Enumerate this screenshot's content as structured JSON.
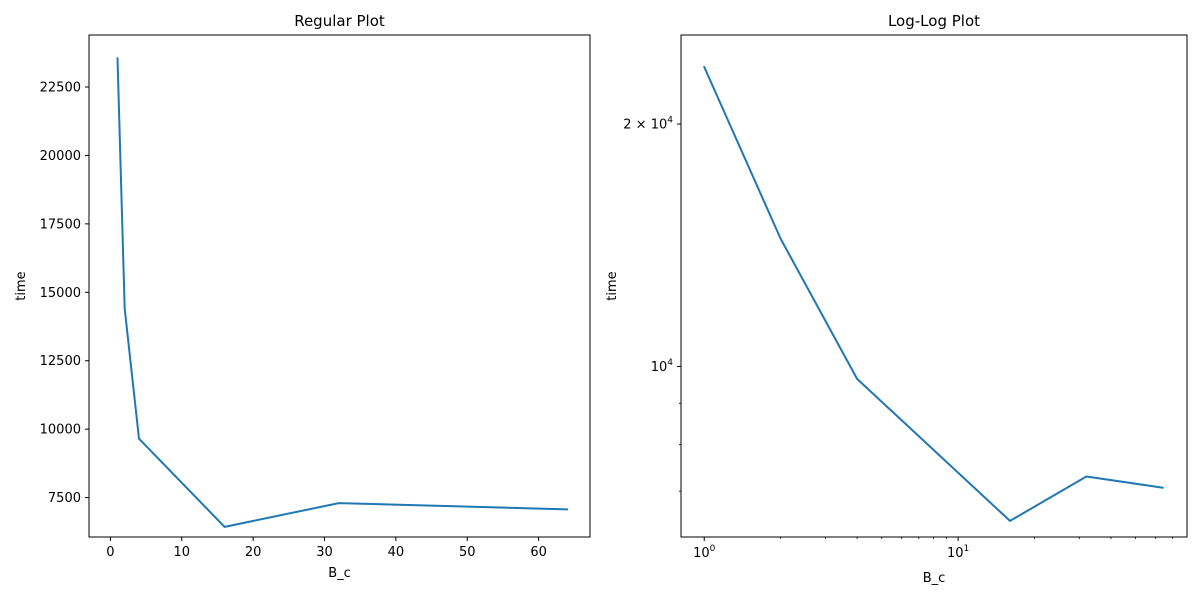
{
  "figure": {
    "background": "#ffffff",
    "line_color": "#1f77b4"
  },
  "chart_data": [
    {
      "type": "line",
      "title": "Regular Plot",
      "xlabel": "B_c",
      "ylabel": "time",
      "x": [
        1,
        2,
        4,
        16,
        32,
        64
      ],
      "series": [
        {
          "name": "time",
          "values": [
            23550,
            14400,
            9650,
            6430,
            7300,
            7070
          ]
        }
      ],
      "xscale": "linear",
      "yscale": "linear",
      "xlim": [
        -3.0,
        67.2
      ],
      "ylim": [
        6060,
        24400
      ],
      "xticks": [
        0,
        10,
        20,
        30,
        40,
        50,
        60
      ],
      "xtick_labels": [
        "0",
        "10",
        "20",
        "30",
        "40",
        "50",
        "60"
      ],
      "yticks": [
        7500,
        10000,
        12500,
        15000,
        17500,
        20000,
        22500
      ],
      "ytick_labels": [
        "7500",
        "10000",
        "12500",
        "15000",
        "17500",
        "20000",
        "22500"
      ],
      "grid": false
    },
    {
      "type": "line",
      "title": "Log-Log Plot",
      "xlabel": "B_c",
      "ylabel": "time",
      "x": [
        1,
        2,
        4,
        16,
        32,
        64
      ],
      "series": [
        {
          "name": "time",
          "values": [
            23550,
            14400,
            9650,
            6430,
            7300,
            7070
          ]
        }
      ],
      "xscale": "log",
      "yscale": "log",
      "xlim": [
        0.81,
        79.7
      ],
      "ylim": [
        6140,
        25800
      ],
      "xticks_major": [
        1,
        10
      ],
      "xtick_major_labels": [
        {
          "base": "10",
          "exp": "0"
        },
        {
          "base": "10",
          "exp": "1"
        }
      ],
      "yticks_major": [
        10000,
        20000
      ],
      "ytick_major_labels": [
        {
          "prefix": "",
          "base": "10",
          "exp": "4"
        },
        {
          "prefix": "2 × ",
          "base": "10",
          "exp": "4"
        }
      ],
      "xticks_minor": [
        2,
        3,
        4,
        5,
        6,
        7,
        8,
        9,
        20,
        30,
        40,
        50,
        60,
        70
      ],
      "yticks_minor": [
        7000,
        8000,
        9000
      ],
      "grid": false
    }
  ]
}
